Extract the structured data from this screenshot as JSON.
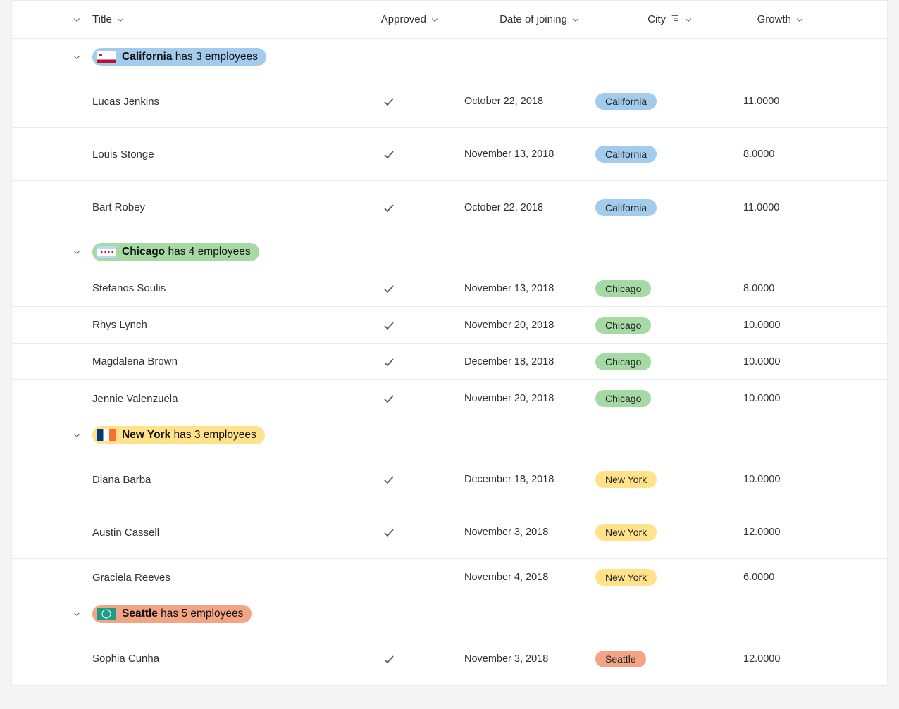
{
  "colors": {
    "page_bg": "#f5f5f5",
    "table_bg": "#ffffff",
    "border": "#edebe9",
    "text": "#323130",
    "icon": "#605e5c",
    "california": "#a3cbeb",
    "chicago": "#a5daa5",
    "newyork": "#ffe28a",
    "seattle": "#f2a485"
  },
  "columns": {
    "title": "Title",
    "approved": "Approved",
    "date": "Date of joining",
    "city": "City",
    "growth": "Growth"
  },
  "groups": [
    {
      "key": "california",
      "name": "California",
      "suffix": "has 3 employees",
      "pill_bg": "#a3cbeb",
      "flag_class": "flag-california",
      "row_height": "h-lg",
      "rows": [
        {
          "title": "Lucas Jenkins",
          "approved": true,
          "date": "October 22, 2018",
          "city": "California",
          "city_bg": "#a3cbeb",
          "growth": "11.0000"
        },
        {
          "title": "Louis Stonge",
          "approved": true,
          "date": "November 13, 2018",
          "city": "California",
          "city_bg": "#a3cbeb",
          "growth": "8.0000"
        },
        {
          "title": "Bart Robey",
          "approved": true,
          "date": "October 22, 2018",
          "city": "California",
          "city_bg": "#a3cbeb",
          "growth": "11.0000"
        }
      ]
    },
    {
      "key": "chicago",
      "name": "Chicago",
      "suffix": "has 4 employees",
      "pill_bg": "#a5daa5",
      "flag_class": "flag-chicago",
      "row_height": "h-md",
      "rows": [
        {
          "title": "Stefanos Soulis",
          "approved": true,
          "date": "November 13, 2018",
          "city": "Chicago",
          "city_bg": "#a5daa5",
          "growth": "8.0000"
        },
        {
          "title": "Rhys Lynch",
          "approved": true,
          "date": "November 20, 2018",
          "city": "Chicago",
          "city_bg": "#a5daa5",
          "growth": "10.0000"
        },
        {
          "title": "Magdalena Brown",
          "approved": true,
          "date": "December 18, 2018",
          "city": "Chicago",
          "city_bg": "#a5daa5",
          "growth": "10.0000"
        },
        {
          "title": "Jennie Valenzuela",
          "approved": true,
          "date": "November 20, 2018",
          "city": "Chicago",
          "city_bg": "#a5daa5",
          "growth": "10.0000"
        }
      ]
    },
    {
      "key": "newyork",
      "name": "New York",
      "suffix": "has 3 employees",
      "pill_bg": "#ffe28a",
      "flag_class": "flag-newyork",
      "row_height": "h-lg",
      "rows": [
        {
          "title": "Diana Barba",
          "approved": true,
          "date": "December 18, 2018",
          "city": "New York",
          "city_bg": "#ffe28a",
          "growth": "10.0000",
          "height": "h-lg"
        },
        {
          "title": "Austin Cassell",
          "approved": true,
          "date": "November 3, 2018",
          "city": "New York",
          "city_bg": "#ffe28a",
          "growth": "12.0000",
          "height": "h-lg"
        },
        {
          "title": "Graciela Reeves",
          "approved": false,
          "date": "November 4, 2018",
          "city": "New York",
          "city_bg": "#ffe28a",
          "growth": "6.0000",
          "height": "h-md"
        }
      ]
    },
    {
      "key": "seattle",
      "name": "Seattle",
      "suffix": "has 5 employees",
      "pill_bg": "#f2a485",
      "flag_class": "flag-seattle",
      "row_height": "h-lg",
      "rows": [
        {
          "title": "Sophia Cunha",
          "approved": true,
          "date": "November 3, 2018",
          "city": "Seattle",
          "city_bg": "#f2a485",
          "growth": "12.0000"
        }
      ]
    }
  ]
}
